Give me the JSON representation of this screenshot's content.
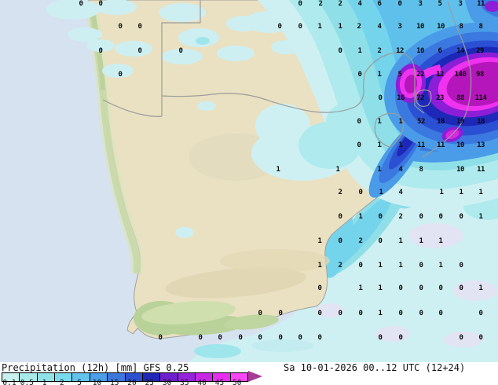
{
  "legend": {
    "title": "Precipitation (12h) [mm] GFS 0.25",
    "datetime": "Sa 10-01-2026 00..12 UTC (12+24)",
    "unit": "mm",
    "model": "GFS 0.25",
    "scale": [
      {
        "label": "0.1",
        "color": "#c9f0ee"
      },
      {
        "label": "0.5",
        "color": "#a8eae8"
      },
      {
        "label": "1",
        "color": "#8fe3e6"
      },
      {
        "label": "2",
        "color": "#79d9ec"
      },
      {
        "label": "5",
        "color": "#62c4ec"
      },
      {
        "label": "10",
        "color": "#4b9ee8"
      },
      {
        "label": "15",
        "color": "#3c78dc"
      },
      {
        "label": "20",
        "color": "#2d50d0"
      },
      {
        "label": "25",
        "color": "#1f28b8"
      },
      {
        "label": "30",
        "color": "#6e1ecc"
      },
      {
        "label": "35",
        "color": "#9623dc"
      },
      {
        "label": "40",
        "color": "#c828e6"
      },
      {
        "label": "45",
        "color": "#e62df0"
      },
      {
        "label": "50",
        "color": "#f846f8"
      }
    ],
    "arrow_color": "#a83c96"
  },
  "map": {
    "colors": {
      "ocean": "#d7e2f1",
      "land": "#eae1c2",
      "coast_green": "#c6d7a4",
      "border_line": "#9b9b9b",
      "light_precip": "#cff0f2",
      "heavy_core": "#b516bc"
    },
    "values": [
      [
        103,
        2,
        "0"
      ],
      [
        128,
        2,
        "0"
      ],
      [
        382,
        2,
        "0"
      ],
      [
        408,
        2,
        "2"
      ],
      [
        433,
        2,
        "2"
      ],
      [
        458,
        2,
        "4"
      ],
      [
        483,
        2,
        "6"
      ],
      [
        509,
        2,
        "0"
      ],
      [
        535,
        2,
        "3"
      ],
      [
        560,
        2,
        "5"
      ],
      [
        586,
        2,
        "3"
      ],
      [
        612,
        2,
        "11"
      ],
      [
        153,
        31,
        "0"
      ],
      [
        178,
        31,
        "0"
      ],
      [
        356,
        31,
        "0"
      ],
      [
        382,
        31,
        "0"
      ],
      [
        407,
        31,
        "1"
      ],
      [
        433,
        31,
        "1"
      ],
      [
        457,
        31,
        "2"
      ],
      [
        483,
        31,
        "4"
      ],
      [
        509,
        31,
        "3"
      ],
      [
        535,
        31,
        "10"
      ],
      [
        561,
        31,
        "10"
      ],
      [
        587,
        31,
        "8"
      ],
      [
        612,
        31,
        "8"
      ],
      [
        128,
        62,
        "0"
      ],
      [
        178,
        62,
        "0"
      ],
      [
        230,
        62,
        "0"
      ],
      [
        433,
        62,
        "0"
      ],
      [
        458,
        62,
        "1"
      ],
      [
        483,
        62,
        "2"
      ],
      [
        509,
        62,
        "12"
      ],
      [
        535,
        62,
        "10"
      ],
      [
        560,
        62,
        "6"
      ],
      [
        586,
        62,
        "14"
      ],
      [
        611,
        62,
        "29"
      ],
      [
        153,
        92,
        "0"
      ],
      [
        458,
        92,
        "0"
      ],
      [
        483,
        92,
        "1"
      ],
      [
        509,
        92,
        "5"
      ],
      [
        535,
        92,
        "22"
      ],
      [
        560,
        92,
        "12"
      ],
      [
        586,
        92,
        "140"
      ],
      [
        611,
        92,
        "98"
      ],
      [
        484,
        122,
        "0"
      ],
      [
        510,
        122,
        "16"
      ],
      [
        535,
        122,
        "72"
      ],
      [
        560,
        122,
        "23"
      ],
      [
        586,
        122,
        "88"
      ],
      [
        612,
        122,
        "114"
      ],
      [
        457,
        152,
        "0"
      ],
      [
        483,
        152,
        "1"
      ],
      [
        510,
        152,
        "1"
      ],
      [
        536,
        152,
        "52"
      ],
      [
        561,
        152,
        "18"
      ],
      [
        586,
        152,
        "19"
      ],
      [
        612,
        152,
        "18"
      ],
      [
        457,
        182,
        "0"
      ],
      [
        483,
        182,
        "1"
      ],
      [
        510,
        182,
        "1"
      ],
      [
        536,
        182,
        "11"
      ],
      [
        561,
        182,
        "11"
      ],
      [
        586,
        182,
        "10"
      ],
      [
        612,
        182,
        "13"
      ],
      [
        354,
        213,
        "1"
      ],
      [
        430,
        213,
        "1"
      ],
      [
        483,
        213,
        "1"
      ],
      [
        510,
        213,
        "4"
      ],
      [
        536,
        213,
        "8"
      ],
      [
        586,
        213,
        "10"
      ],
      [
        612,
        213,
        "11"
      ],
      [
        433,
        242,
        "2"
      ],
      [
        459,
        242,
        "0"
      ],
      [
        485,
        242,
        "1"
      ],
      [
        510,
        242,
        "4"
      ],
      [
        562,
        242,
        "1"
      ],
      [
        587,
        242,
        "1"
      ],
      [
        612,
        242,
        "1"
      ],
      [
        433,
        273,
        "0"
      ],
      [
        459,
        273,
        "1"
      ],
      [
        484,
        273,
        "0"
      ],
      [
        510,
        273,
        "2"
      ],
      [
        536,
        273,
        "0"
      ],
      [
        561,
        273,
        "0"
      ],
      [
        587,
        273,
        "0"
      ],
      [
        612,
        273,
        "1"
      ],
      [
        407,
        304,
        "1"
      ],
      [
        433,
        304,
        "0"
      ],
      [
        459,
        304,
        "2"
      ],
      [
        484,
        304,
        "0"
      ],
      [
        510,
        304,
        "1"
      ],
      [
        536,
        304,
        "1"
      ],
      [
        561,
        304,
        "1"
      ],
      [
        407,
        335,
        "1"
      ],
      [
        433,
        335,
        "2"
      ],
      [
        459,
        335,
        "0"
      ],
      [
        484,
        335,
        "1"
      ],
      [
        510,
        335,
        "1"
      ],
      [
        536,
        335,
        "0"
      ],
      [
        561,
        335,
        "1"
      ],
      [
        587,
        335,
        "0"
      ],
      [
        407,
        364,
        "0"
      ],
      [
        459,
        364,
        "1"
      ],
      [
        484,
        364,
        "1"
      ],
      [
        510,
        364,
        "0"
      ],
      [
        536,
        364,
        "0"
      ],
      [
        561,
        364,
        "0"
      ],
      [
        587,
        364,
        "0"
      ],
      [
        612,
        364,
        "1"
      ],
      [
        331,
        396,
        "0"
      ],
      [
        357,
        396,
        "0"
      ],
      [
        407,
        396,
        "0"
      ],
      [
        433,
        396,
        "0"
      ],
      [
        459,
        396,
        "0"
      ],
      [
        484,
        396,
        "1"
      ],
      [
        510,
        396,
        "0"
      ],
      [
        536,
        396,
        "0"
      ],
      [
        561,
        396,
        "0"
      ],
      [
        612,
        396,
        "0"
      ],
      [
        204,
        427,
        "0"
      ],
      [
        255,
        427,
        "0"
      ],
      [
        280,
        427,
        "0"
      ],
      [
        306,
        427,
        "0"
      ],
      [
        331,
        427,
        "0"
      ],
      [
        357,
        427,
        "0"
      ],
      [
        382,
        427,
        "0"
      ],
      [
        407,
        427,
        "0"
      ],
      [
        484,
        427,
        "0"
      ],
      [
        510,
        427,
        "0"
      ],
      [
        587,
        427,
        "0"
      ],
      [
        612,
        427,
        "0"
      ]
    ]
  }
}
